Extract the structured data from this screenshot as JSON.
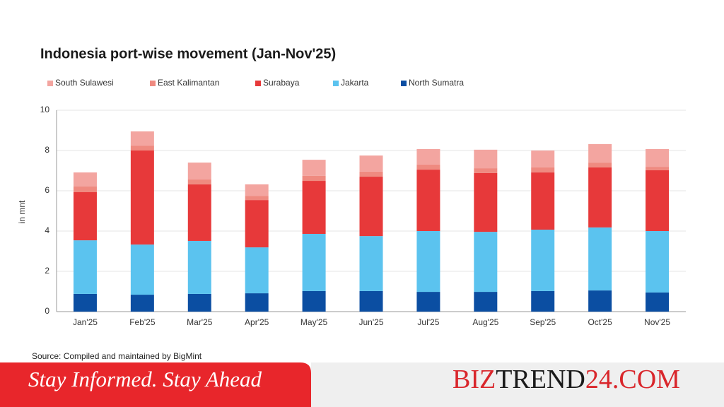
{
  "chart_data": {
    "type": "stacked_bar",
    "title": "Indonesia port-wise movement (Jan-Nov'25)",
    "y_label": "in mnt",
    "source": "Source: Compiled and maintained by BigMint",
    "categories": [
      "Jan'25",
      "Feb'25",
      "Mar'25",
      "Apr'25",
      "May'25",
      "Jun'25",
      "Jul'25",
      "Aug'25",
      "Sep'25",
      "Oct'25",
      "Nov'25"
    ],
    "series": [
      {
        "name": "North Sumatra",
        "color": "#0b4ea2",
        "values": [
          0.88,
          0.84,
          0.88,
          0.91,
          1.02,
          1.02,
          0.98,
          0.98,
          1.02,
          1.05,
          0.95
        ]
      },
      {
        "name": "Jakarta",
        "color": "#5bc3ef",
        "values": [
          2.66,
          2.49,
          2.63,
          2.28,
          2.84,
          2.73,
          3.02,
          2.98,
          3.05,
          3.13,
          3.05
        ]
      },
      {
        "name": "Surabaya",
        "color": "#e7393a",
        "values": [
          2.39,
          4.67,
          2.81,
          2.35,
          2.63,
          2.95,
          3.05,
          2.92,
          2.84,
          2.98,
          3.02
        ]
      },
      {
        "name": "East Kalimantan",
        "color": "#ef8a80",
        "values": [
          0.28,
          0.25,
          0.24,
          0.21,
          0.25,
          0.25,
          0.25,
          0.24,
          0.25,
          0.24,
          0.17
        ]
      },
      {
        "name": "South Sulawesi",
        "color": "#f3a5a0",
        "values": [
          0.7,
          0.7,
          0.84,
          0.57,
          0.8,
          0.8,
          0.77,
          0.92,
          0.84,
          0.92,
          0.88
        ]
      }
    ],
    "ylim": [
      0,
      10
    ],
    "yticks": [
      0,
      2,
      4,
      6,
      8,
      10
    ],
    "grid": true
  },
  "footer": {
    "tagline": "Stay Informed. Stay Ahead",
    "brand": [
      "BIZ",
      "TREND",
      "24.COM"
    ]
  }
}
